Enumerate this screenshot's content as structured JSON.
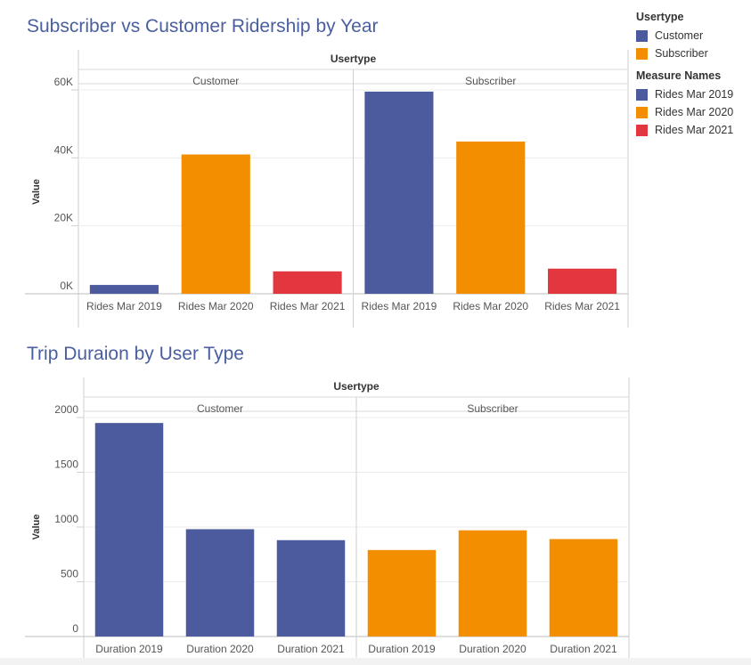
{
  "colors": {
    "rides2019": "#4c5b9e",
    "rides2020": "#f28e00",
    "rides2021": "#e3373f",
    "customer": "#4c5b9e",
    "subscriber": "#f28e00"
  },
  "legend": {
    "usertype_title": "Usertype",
    "usertype_items": [
      {
        "label": "Customer",
        "color": "#4c5b9e"
      },
      {
        "label": "Subscriber",
        "color": "#f28e00"
      }
    ],
    "measure_title": "Measure Names",
    "measure_items": [
      {
        "label": "Rides Mar 2019",
        "color": "#4c5b9e"
      },
      {
        "label": "Rides Mar 2020",
        "color": "#f28e00"
      },
      {
        "label": "Rides Mar 2021",
        "color": "#e3373f"
      }
    ]
  },
  "chart_data": [
    {
      "type": "bar",
      "title": "Subscriber vs Customer Ridership by Year",
      "column_header": "Usertype",
      "ylabel": "Value",
      "ylim": [
        0,
        60000
      ],
      "yticks": [
        0,
        20000,
        40000,
        60000
      ],
      "ytick_labels": [
        "0K",
        "20K",
        "40K",
        "60K"
      ],
      "panels": [
        {
          "name": "Customer",
          "categories": [
            "Rides Mar 2019",
            "Rides Mar 2020",
            "Rides Mar 2021"
          ],
          "values": [
            2600,
            41000,
            6600
          ],
          "colors": [
            "#4c5b9e",
            "#f28e00",
            "#e3373f"
          ]
        },
        {
          "name": "Subscriber",
          "categories": [
            "Rides Mar 2019",
            "Rides Mar 2020",
            "Rides Mar 2021"
          ],
          "values": [
            59500,
            44800,
            7400
          ],
          "colors": [
            "#4c5b9e",
            "#f28e00",
            "#e3373f"
          ]
        }
      ]
    },
    {
      "type": "bar",
      "title": "Trip Duraion by User Type",
      "column_header": "Usertype",
      "ylabel": "Value",
      "ylim": [
        0,
        2000
      ],
      "yticks": [
        0,
        500,
        1000,
        1500,
        2000
      ],
      "ytick_labels": [
        "0",
        "500",
        "1000",
        "1500",
        "2000"
      ],
      "panels": [
        {
          "name": "Customer",
          "categories": [
            "Duration 2019",
            "Duration 2020",
            "Duration 2021"
          ],
          "values": [
            1950,
            980,
            880
          ],
          "colors": [
            "#4c5b9e",
            "#4c5b9e",
            "#4c5b9e"
          ]
        },
        {
          "name": "Subscriber",
          "categories": [
            "Duration 2019",
            "Duration 2020",
            "Duration 2021"
          ],
          "values": [
            790,
            970,
            890
          ],
          "colors": [
            "#f28e00",
            "#f28e00",
            "#f28e00"
          ]
        }
      ]
    }
  ]
}
